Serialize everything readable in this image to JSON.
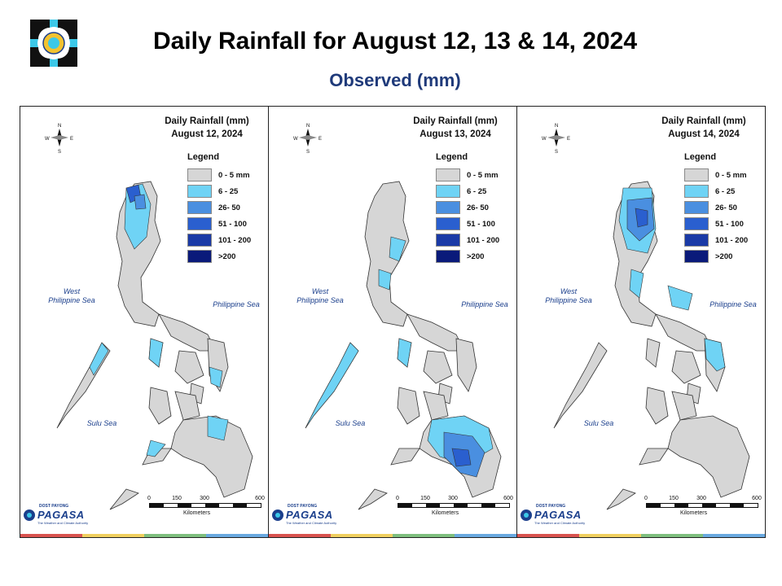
{
  "header": {
    "title": "Daily Rainfall for August 12, 13 & 14, 2024",
    "subtitle": "Observed (mm)"
  },
  "legend": {
    "title": "Legend",
    "items": [
      {
        "label": "0 - 5 mm",
        "color": "#d6d6d6"
      },
      {
        "label": "6 - 25",
        "color": "#6fd3f5"
      },
      {
        "label": "26- 50",
        "color": "#4a8fe0"
      },
      {
        "label": "51 - 100",
        "color": "#2a5fcf"
      },
      {
        "label": "101 - 200",
        "color": "#1a3aa6"
      },
      {
        "label": ">200",
        "color": "#0a1a7a"
      }
    ]
  },
  "panels": [
    {
      "title": "Daily Rainfall (mm)",
      "date": "August 12, 2024"
    },
    {
      "title": "Daily Rainfall (mm)",
      "date": "August 13, 2024"
    },
    {
      "title": "Daily Rainfall (mm)",
      "date": "August 14, 2024"
    }
  ],
  "seas": {
    "west": "West\nPhilippine Sea",
    "east": "Philippine Sea",
    "sulu": "Sulu Sea"
  },
  "scale": {
    "ticks": [
      "0",
      "150",
      "300",
      "600"
    ],
    "unit": "Kilometers"
  },
  "compass": {
    "n": "N",
    "s": "S",
    "e": "E",
    "w": "W"
  },
  "branding": {
    "agency": "PAGASA",
    "dost": "DOST PAYONG",
    "tagline": "The Weather and Climate Authority"
  },
  "stripe_colors": [
    "#d9534f",
    "#f0d060",
    "#7fbf7f",
    "#6aa9e0"
  ]
}
